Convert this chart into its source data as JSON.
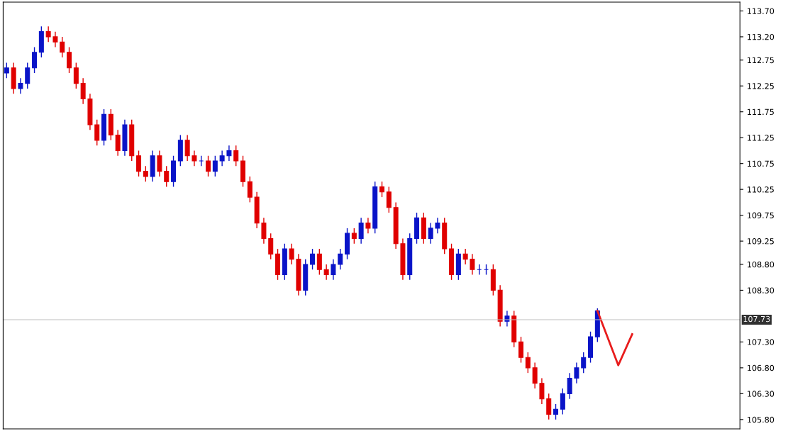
{
  "chart_data": {
    "type": "candlestick",
    "categories": [
      null,
      null,
      null,
      null,
      null,
      null,
      null,
      null,
      null,
      null,
      null,
      null,
      null,
      null,
      null,
      null,
      null,
      null,
      null,
      null,
      null,
      null,
      null,
      null,
      null,
      null,
      null,
      null,
      null,
      null,
      null,
      null,
      null,
      null,
      null,
      null,
      null,
      null,
      null,
      null,
      null,
      null,
      null,
      null,
      null,
      null,
      null,
      null,
      null,
      null,
      null,
      null,
      null,
      null,
      null,
      null,
      null,
      null,
      null,
      null,
      null,
      null,
      null,
      null,
      null,
      null,
      null,
      null,
      null,
      null,
      null,
      null,
      null,
      null,
      null,
      null,
      null,
      null,
      null,
      null,
      null,
      null,
      null,
      null,
      null,
      null,
      null,
      null,
      null,
      null,
      null,
      null,
      null,
      null,
      null,
      null,
      null,
      null,
      null,
      null,
      null,
      null,
      null,
      null,
      null,
      null
    ],
    "ohlc": [
      [
        112.5,
        112.7,
        112.4,
        112.6
      ],
      [
        112.6,
        112.7,
        112.1,
        112.2
      ],
      [
        112.2,
        112.4,
        112.1,
        112.3
      ],
      [
        112.3,
        112.7,
        112.2,
        112.6
      ],
      [
        112.6,
        113.0,
        112.5,
        112.9
      ],
      [
        112.9,
        113.4,
        112.8,
        113.3
      ],
      [
        113.3,
        113.4,
        113.1,
        113.2
      ],
      [
        113.2,
        113.3,
        113.0,
        113.1
      ],
      [
        113.1,
        113.2,
        112.8,
        112.9
      ],
      [
        112.9,
        113.0,
        112.5,
        112.6
      ],
      [
        112.6,
        112.7,
        112.2,
        112.3
      ],
      [
        112.3,
        112.4,
        111.9,
        112.0
      ],
      [
        112.0,
        112.1,
        111.4,
        111.5
      ],
      [
        111.5,
        111.6,
        111.1,
        111.2
      ],
      [
        111.2,
        111.8,
        111.1,
        111.7
      ],
      [
        111.7,
        111.8,
        111.2,
        111.3
      ],
      [
        111.3,
        111.4,
        110.9,
        111.0
      ],
      [
        111.0,
        111.6,
        110.9,
        111.5
      ],
      [
        111.5,
        111.6,
        110.8,
        110.9
      ],
      [
        110.9,
        111.0,
        110.5,
        110.6
      ],
      [
        110.6,
        110.7,
        110.4,
        110.5
      ],
      [
        110.5,
        111.0,
        110.4,
        110.9
      ],
      [
        110.9,
        111.0,
        110.5,
        110.6
      ],
      [
        110.6,
        110.7,
        110.3,
        110.4
      ],
      [
        110.4,
        110.9,
        110.3,
        110.8
      ],
      [
        110.8,
        111.3,
        110.7,
        111.2
      ],
      [
        111.2,
        111.3,
        110.8,
        110.9
      ],
      [
        110.9,
        111.0,
        110.7,
        110.8
      ],
      [
        110.8,
        110.9,
        110.7,
        110.8
      ],
      [
        110.8,
        110.9,
        110.5,
        110.6
      ],
      [
        110.6,
        110.9,
        110.5,
        110.8
      ],
      [
        110.8,
        111.0,
        110.7,
        110.9
      ],
      [
        110.9,
        111.1,
        110.8,
        111.0
      ],
      [
        111.0,
        111.1,
        110.7,
        110.8
      ],
      [
        110.8,
        110.9,
        110.3,
        110.4
      ],
      [
        110.4,
        110.5,
        110.0,
        110.1
      ],
      [
        110.1,
        110.2,
        109.5,
        109.6
      ],
      [
        109.6,
        109.7,
        109.2,
        109.3
      ],
      [
        109.3,
        109.4,
        108.9,
        109.0
      ],
      [
        109.0,
        109.1,
        108.5,
        108.6
      ],
      [
        108.6,
        109.2,
        108.5,
        109.1
      ],
      [
        109.1,
        109.2,
        108.8,
        108.9
      ],
      [
        108.9,
        109.0,
        108.2,
        108.3
      ],
      [
        108.3,
        108.9,
        108.2,
        108.8
      ],
      [
        108.8,
        109.1,
        108.7,
        109.0
      ],
      [
        109.0,
        109.1,
        108.6,
        108.7
      ],
      [
        108.7,
        108.8,
        108.5,
        108.6
      ],
      [
        108.6,
        108.9,
        108.5,
        108.8
      ],
      [
        108.8,
        109.1,
        108.7,
        109.0
      ],
      [
        109.0,
        109.5,
        108.9,
        109.4
      ],
      [
        109.4,
        109.5,
        109.2,
        109.3
      ],
      [
        109.3,
        109.7,
        109.2,
        109.6
      ],
      [
        109.6,
        109.7,
        109.4,
        109.5
      ],
      [
        109.5,
        110.4,
        109.4,
        110.3
      ],
      [
        110.3,
        110.4,
        110.1,
        110.2
      ],
      [
        110.2,
        110.3,
        109.8,
        109.9
      ],
      [
        109.9,
        110.0,
        109.1,
        109.2
      ],
      [
        109.2,
        109.3,
        108.5,
        108.6
      ],
      [
        108.6,
        109.4,
        108.5,
        109.3
      ],
      [
        109.3,
        109.8,
        109.2,
        109.7
      ],
      [
        109.7,
        109.8,
        109.2,
        109.3
      ],
      [
        109.3,
        109.6,
        109.2,
        109.5
      ],
      [
        109.5,
        109.7,
        109.4,
        109.6
      ],
      [
        109.6,
        109.7,
        109.0,
        109.1
      ],
      [
        109.1,
        109.2,
        108.5,
        108.6
      ],
      [
        108.6,
        109.1,
        108.5,
        109.0
      ],
      [
        109.0,
        109.1,
        108.8,
        108.9
      ],
      [
        108.9,
        109.0,
        108.6,
        108.7
      ],
      [
        108.7,
        108.8,
        108.6,
        108.7
      ],
      [
        108.7,
        108.8,
        108.6,
        108.7
      ],
      [
        108.7,
        108.8,
        108.2,
        108.3
      ],
      [
        108.3,
        108.4,
        107.6,
        107.7
      ],
      [
        107.7,
        107.9,
        107.6,
        107.8
      ],
      [
        107.8,
        107.9,
        107.2,
        107.3
      ],
      [
        107.3,
        107.4,
        106.9,
        107.0
      ],
      [
        107.0,
        107.1,
        106.7,
        106.8
      ],
      [
        106.8,
        106.9,
        106.4,
        106.5
      ],
      [
        106.5,
        106.6,
        106.1,
        106.2
      ],
      [
        106.2,
        106.3,
        105.8,
        105.9
      ],
      [
        105.9,
        106.1,
        105.8,
        106.0
      ],
      [
        106.0,
        106.4,
        105.9,
        106.3
      ],
      [
        106.3,
        106.7,
        106.2,
        106.6
      ],
      [
        106.6,
        106.9,
        106.5,
        106.8
      ],
      [
        106.8,
        107.1,
        106.7,
        107.0
      ],
      [
        107.0,
        107.5,
        106.9,
        107.4
      ],
      [
        107.4,
        107.95,
        107.3,
        107.9
      ],
      null,
      null,
      null,
      null,
      null,
      null,
      null,
      null,
      null,
      null,
      null,
      null,
      null,
      null,
      null,
      null,
      null,
      null,
      null,
      null
    ],
    "colors": [
      "#0a14c8",
      "#e00000",
      "#0a14c8",
      "#0a14c8",
      "#0a14c8",
      "#0a14c8",
      "#e00000",
      "#e00000",
      "#e00000",
      "#e00000",
      "#e00000",
      "#e00000",
      "#e00000",
      "#e00000",
      "#0a14c8",
      "#e00000",
      "#e00000",
      "#0a14c8",
      "#e00000",
      "#e00000",
      "#e00000",
      "#0a14c8",
      "#e00000",
      "#e00000",
      "#0a14c8",
      "#0a14c8",
      "#e00000",
      "#e00000",
      "#0a14c8",
      "#e00000",
      "#0a14c8",
      "#0a14c8",
      "#0a14c8",
      "#e00000",
      "#e00000",
      "#e00000",
      "#e00000",
      "#e00000",
      "#e00000",
      "#e00000",
      "#0a14c8",
      "#e00000",
      "#e00000",
      "#0a14c8",
      "#0a14c8",
      "#e00000",
      "#e00000",
      "#0a14c8",
      "#0a14c8",
      "#0a14c8",
      "#e00000",
      "#0a14c8",
      "#e00000",
      "#0a14c8",
      "#e00000",
      "#e00000",
      "#e00000",
      "#e00000",
      "#0a14c8",
      "#0a14c8",
      "#e00000",
      "#0a14c8",
      "#0a14c8",
      "#e00000",
      "#e00000",
      "#0a14c8",
      "#e00000",
      "#e00000",
      "#0a14c8",
      "#0a14c8",
      "#e00000",
      "#e00000",
      "#0a14c8",
      "#e00000",
      "#e00000",
      "#e00000",
      "#e00000",
      "#e00000",
      "#e00000",
      "#0a14c8",
      "#0a14c8",
      "#0a14c8",
      "#0a14c8",
      "#0a14c8",
      "#0a14c8",
      "#0a14c8",
      null,
      null,
      null,
      null,
      null,
      null,
      null,
      null,
      null,
      null,
      null,
      null,
      null,
      null,
      null,
      null,
      null,
      null,
      null,
      null
    ],
    "series": [
      {
        "type": "line",
        "color": "#e81c1c",
        "values": [
          null,
          null,
          null,
          null,
          null,
          null,
          null,
          null,
          null,
          null,
          null,
          null,
          null,
          null,
          null,
          null,
          null,
          null,
          null,
          null,
          null,
          null,
          null,
          null,
          null,
          null,
          null,
          null,
          null,
          null,
          null,
          null,
          null,
          null,
          null,
          null,
          null,
          null,
          null,
          null,
          null,
          null,
          null,
          null,
          null,
          null,
          null,
          null,
          null,
          null,
          null,
          null,
          null,
          null,
          null,
          null,
          null,
          null,
          null,
          null,
          null,
          null,
          null,
          null,
          null,
          null,
          null,
          null,
          null,
          null,
          null,
          null,
          null,
          null,
          null,
          null,
          null,
          null,
          null,
          null,
          null,
          null,
          null,
          null,
          null,
          107.9,
          null,
          null,
          106.85,
          null,
          107.45,
          null,
          null,
          null,
          null,
          null,
          null,
          null,
          null,
          null,
          null,
          null,
          null,
          null,
          null,
          null
        ]
      }
    ],
    "ylim": [
      105.62,
      113.87
    ],
    "yticks": [
      {
        "value": 113.7,
        "label": "113.70"
      },
      {
        "value": 113.2,
        "label": "113.20"
      },
      {
        "value": 112.75,
        "label": "112.75"
      },
      {
        "value": 112.25,
        "label": "112.25"
      },
      {
        "value": 111.75,
        "label": "111.75"
      },
      {
        "value": 111.25,
        "label": "111.25"
      },
      {
        "value": 110.75,
        "label": "110.75"
      },
      {
        "value": 110.25,
        "label": "110.25"
      },
      {
        "value": 109.75,
        "label": "109.75"
      },
      {
        "value": 109.25,
        "label": "109.25"
      },
      {
        "value": 108.8,
        "label": "108.80"
      },
      {
        "value": 108.3,
        "label": "108.30"
      },
      {
        "value": 107.3,
        "label": "107.30"
      },
      {
        "value": 106.8,
        "label": "106.80"
      },
      {
        "value": 106.3,
        "label": "106.30"
      },
      {
        "value": 105.8,
        "label": "105.80"
      }
    ],
    "ref_lines": [
      {
        "axis": "y",
        "value": 107.73,
        "label": "107.73",
        "color": "#c0c0c0"
      }
    ],
    "tick_labels": "y",
    "grid": false
  }
}
